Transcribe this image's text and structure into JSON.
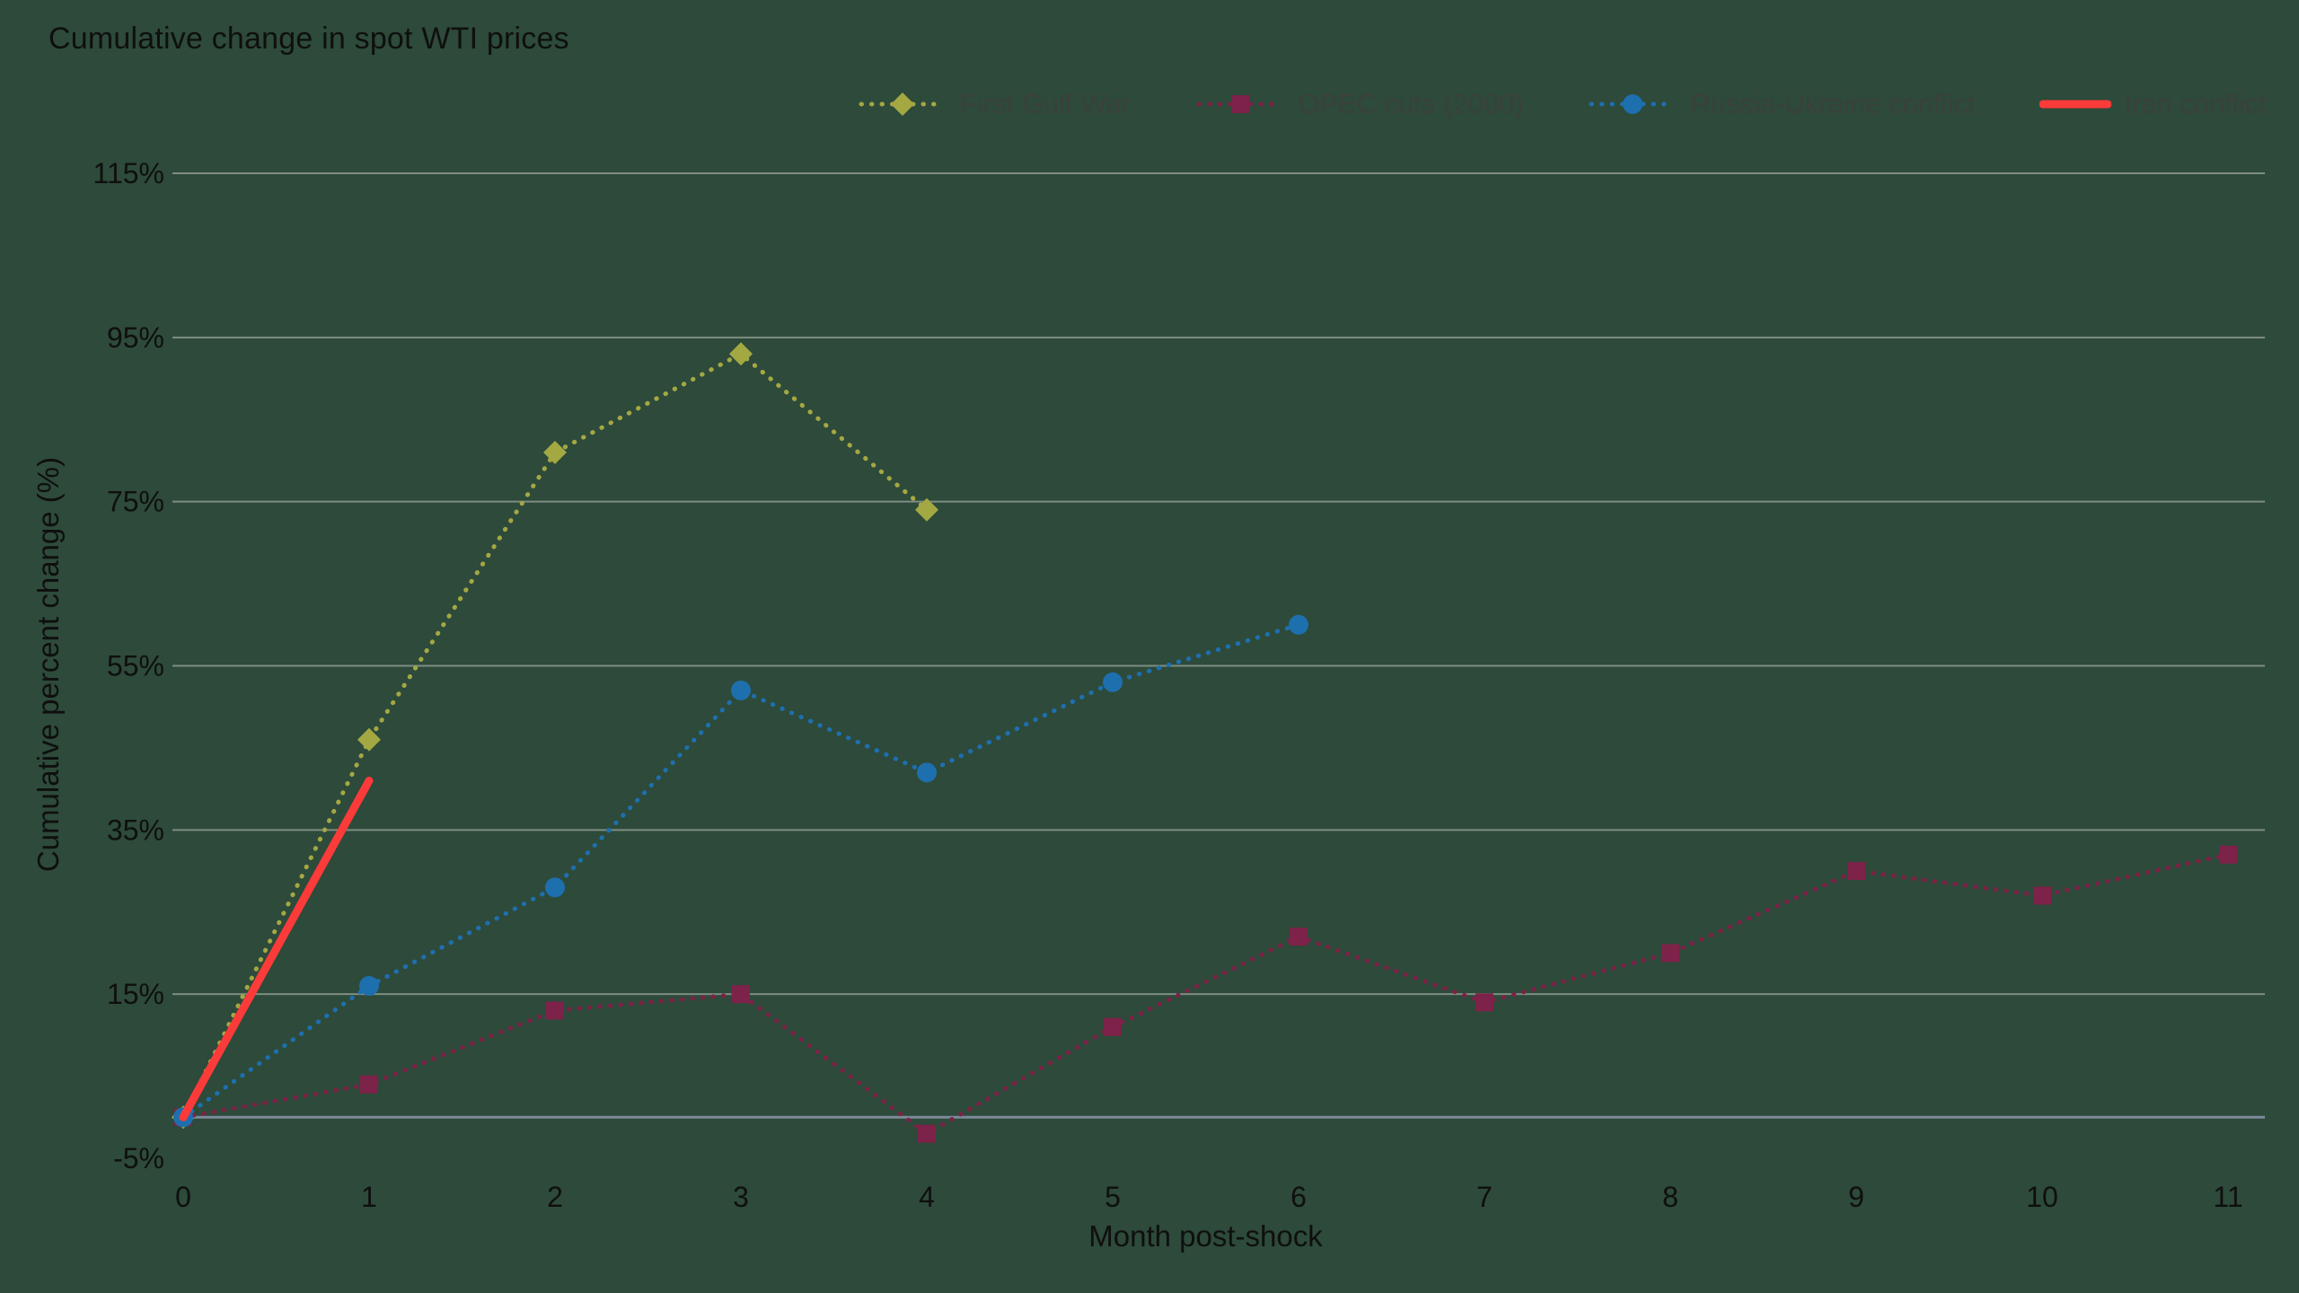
{
  "title": "Cumulative change in spot WTI prices",
  "chart_data": {
    "type": "line",
    "title": "Cumulative change in spot WTI prices",
    "xlabel": "Month post-shock",
    "ylabel": "Cumulative percent change (%)",
    "xlim": [
      0,
      11
    ],
    "ylim": [
      -5,
      115
    ],
    "x_ticks": [
      "0",
      "1",
      "2",
      "3",
      "4",
      "5",
      "6",
      "7",
      "8",
      "9",
      "10",
      "11"
    ],
    "y_ticks": [
      "-5%",
      "15%",
      "35%",
      "55%",
      "75%",
      "95%",
      "115%"
    ],
    "grid": "horizontal",
    "legend_position": "top",
    "series": [
      {
        "name": "First Gulf War",
        "color": "#a4a843",
        "style": "dotted",
        "marker": "diamond",
        "x": [
          0,
          1,
          2,
          3,
          4
        ],
        "values": [
          0,
          46,
          81,
          93,
          74
        ]
      },
      {
        "name": "OPEC cuts (2000)",
        "color": "#7d2248",
        "style": "dotted",
        "marker": "square",
        "x": [
          0,
          1,
          2,
          3,
          4,
          5,
          6,
          7,
          8,
          9,
          10,
          11
        ],
        "values": [
          0,
          4,
          13,
          15,
          -2,
          11,
          22,
          14,
          20,
          30,
          27,
          32
        ]
      },
      {
        "name": "Russia-Ukraine conflict",
        "color": "#1e6fae",
        "style": "dotted",
        "marker": "circle",
        "x": [
          0,
          1,
          2,
          3,
          4,
          5,
          6
        ],
        "values": [
          0,
          16,
          28,
          52,
          42,
          53,
          60
        ]
      },
      {
        "name": "Iran conflict",
        "color": "#fb3a3a",
        "style": "solid",
        "marker": "none",
        "x": [
          0,
          1
        ],
        "values": [
          0,
          41
        ]
      }
    ]
  },
  "colors": {
    "background": "#2d4a3a",
    "gridline": "#9aa49b",
    "zero_line": "#7d8a99",
    "text": "#0f0f0f",
    "legend_text": "#3a413b"
  }
}
